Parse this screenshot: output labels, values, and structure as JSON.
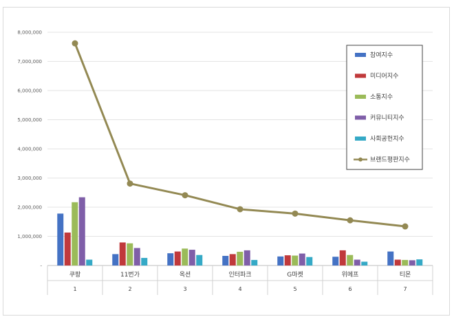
{
  "chart_data": {
    "type": "bar",
    "title": "",
    "xlabel": "",
    "ylabel": "",
    "ylim": [
      0,
      8000000
    ],
    "ytick_labels": [
      "-",
      "1,000,000",
      "2,000,000",
      "3,000,000",
      "4,000,000",
      "5,000,000",
      "6,000,000",
      "7,000,000",
      "8,000,000"
    ],
    "grid": true,
    "legend_position": "top-right",
    "categories": [
      "쿠팡",
      "11번가",
      "옥션",
      "인터파크",
      "G마켓",
      "위메프",
      "티몬"
    ],
    "ranks": [
      "1",
      "2",
      "3",
      "4",
      "5",
      "6",
      "7"
    ],
    "series": [
      {
        "name": "참여지수",
        "color": "#4472c4",
        "values": [
          1780000,
          390000,
          420000,
          330000,
          310000,
          300000,
          480000
        ]
      },
      {
        "name": "미디어지수",
        "color": "#c0393b",
        "values": [
          1130000,
          790000,
          480000,
          390000,
          350000,
          520000,
          200000
        ]
      },
      {
        "name": "소통지수",
        "color": "#9bbb59",
        "values": [
          2170000,
          760000,
          580000,
          470000,
          340000,
          360000,
          190000
        ]
      },
      {
        "name": "커뮤니티지수",
        "color": "#7f5ea8",
        "values": [
          2340000,
          600000,
          540000,
          520000,
          410000,
          200000,
          180000
        ]
      },
      {
        "name": "사회공헌지수",
        "color": "#35a9c6",
        "values": [
          200000,
          260000,
          360000,
          190000,
          290000,
          130000,
          210000
        ]
      }
    ],
    "line_series": {
      "name": "브랜드평판지수",
      "color": "#938953",
      "values": [
        7620000,
        2810000,
        2410000,
        1930000,
        1780000,
        1550000,
        1340000
      ]
    }
  }
}
